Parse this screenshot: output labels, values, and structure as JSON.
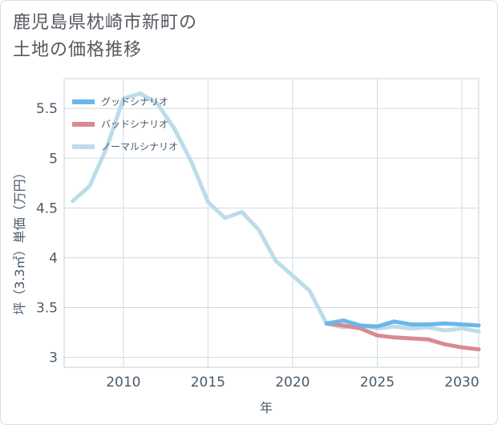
{
  "title_line1": "鹿児島県枕崎市新町の",
  "title_line2": "土地の価格推移",
  "chart_data": {
    "type": "line",
    "xlabel": "年",
    "ylabel": "坪（3.3㎡）単価（万円）",
    "xlim": [
      2006.5,
      2031
    ],
    "ylim": [
      2.9,
      5.8
    ],
    "xticks": [
      2010,
      2015,
      2020,
      2025,
      2030
    ],
    "yticks": [
      3,
      3.5,
      4,
      4.5,
      5,
      5.5
    ],
    "ytick_labels": [
      "3",
      "3.5",
      "4",
      "4.5",
      "5",
      "5.5"
    ],
    "grid": true,
    "legend_position": "top-left",
    "series": [
      {
        "name": "グッドシナリオ",
        "color": "#6bb6e8",
        "x": [
          2022,
          2023,
          2024,
          2025,
          2026,
          2027,
          2028,
          2029,
          2030,
          2031
        ],
        "y": [
          3.34,
          3.37,
          3.32,
          3.31,
          3.36,
          3.33,
          3.33,
          3.34,
          3.33,
          3.32
        ]
      },
      {
        "name": "バッドシナリオ",
        "color": "#d98a92",
        "x": [
          2022,
          2023,
          2024,
          2025,
          2026,
          2027,
          2028,
          2029,
          2030,
          2031
        ],
        "y": [
          3.34,
          3.32,
          3.29,
          3.22,
          3.2,
          3.19,
          3.18,
          3.13,
          3.1,
          3.08
        ]
      },
      {
        "name": "ノーマルシナリオ",
        "color": "#bcdcea",
        "x": [
          2007,
          2008,
          2009,
          2010,
          2011,
          2012,
          2013,
          2014,
          2015,
          2016,
          2017,
          2018,
          2019,
          2020,
          2021,
          2022,
          2023,
          2024,
          2025,
          2026,
          2027,
          2028,
          2029,
          2030,
          2031
        ],
        "y": [
          4.57,
          4.72,
          5.1,
          5.6,
          5.65,
          5.55,
          5.3,
          4.97,
          4.56,
          4.4,
          4.46,
          4.28,
          3.97,
          3.82,
          3.67,
          3.34,
          3.3,
          3.32,
          3.29,
          3.31,
          3.29,
          3.3,
          3.27,
          3.29,
          3.26
        ]
      }
    ]
  }
}
